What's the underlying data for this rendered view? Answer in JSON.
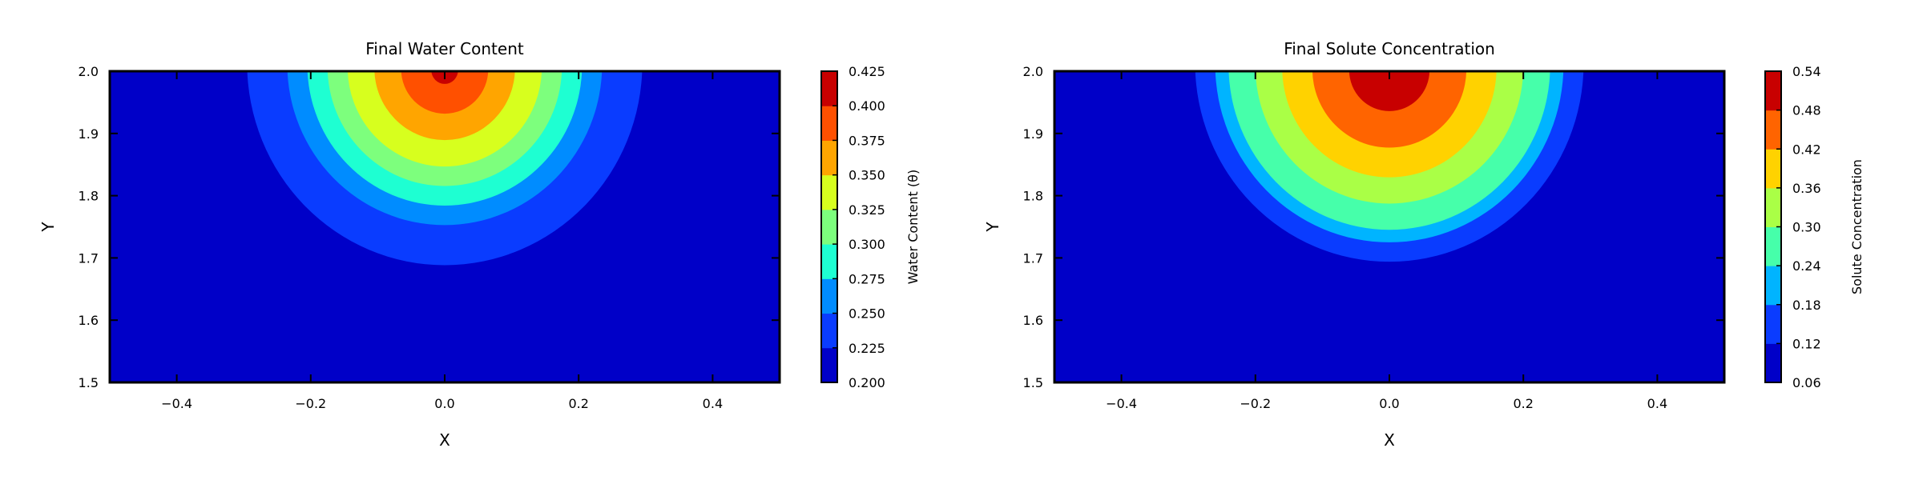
{
  "chart_data": [
    {
      "type": "contourf",
      "title": "Final Water Content",
      "xlabel": "X",
      "ylabel": "Y",
      "xlim": [
        -0.5,
        0.5
      ],
      "ylim": [
        1.5,
        2.0
      ],
      "xticks": [
        -0.4,
        -0.2,
        0.0,
        0.2,
        0.4
      ],
      "xtick_labels": [
        "−0.4",
        "−0.2",
        "0.0",
        "0.2",
        "0.4"
      ],
      "yticks": [
        1.5,
        1.6,
        1.7,
        1.8,
        1.9,
        2.0
      ],
      "ytick_labels": [
        "1.5",
        "1.6",
        "1.7",
        "1.8",
        "1.9",
        "2.0"
      ],
      "colorbar": {
        "label": "Water Content (θ)",
        "levels": [
          0.2,
          0.225,
          0.25,
          0.275,
          0.3,
          0.325,
          0.35,
          0.375,
          0.4,
          0.425
        ],
        "tick_labels": [
          "0.200",
          "0.225",
          "0.250",
          "0.275",
          "0.300",
          "0.325",
          "0.350",
          "0.375",
          "0.400",
          "0.425"
        ],
        "colors": [
          "#0000c8",
          "#0a3cff",
          "#008cff",
          "#1effd2",
          "#7dff7d",
          "#d7ff1e",
          "#ffa500",
          "#ff5000",
          "#c80000"
        ]
      },
      "field": {
        "center": [
          0.0,
          2.0
        ],
        "contour_crossings_along_x_at_top": [
          0.295,
          0.235,
          0.205,
          0.175,
          0.145,
          0.105,
          0.065,
          0.02
        ],
        "vertical_scale": 1.1
      }
    },
    {
      "type": "contourf",
      "title": "Final Solute Concentration",
      "xlabel": "X",
      "ylabel": "Y",
      "xlim": [
        -0.5,
        0.5
      ],
      "ylim": [
        1.5,
        2.0
      ],
      "xticks": [
        -0.4,
        -0.2,
        0.0,
        0.2,
        0.4
      ],
      "xtick_labels": [
        "−0.4",
        "−0.2",
        "0.0",
        "0.2",
        "0.4"
      ],
      "yticks": [
        1.5,
        1.6,
        1.7,
        1.8,
        1.9,
        2.0
      ],
      "ytick_labels": [
        "1.5",
        "1.6",
        "1.7",
        "1.8",
        "1.9",
        "2.0"
      ],
      "colorbar": {
        "label": "Solute Concentration",
        "levels": [
          0.06,
          0.12,
          0.18,
          0.24,
          0.3,
          0.36,
          0.42,
          0.48,
          0.54
        ],
        "tick_labels": [
          "0.06",
          "0.12",
          "0.18",
          "0.24",
          "0.30",
          "0.36",
          "0.42",
          "0.48",
          "0.54"
        ],
        "colors": [
          "#0000c8",
          "#0a3cff",
          "#00b4ff",
          "#46ffaa",
          "#aaff46",
          "#ffd200",
          "#ff6400",
          "#c80000"
        ]
      },
      "field": {
        "center": [
          0.0,
          2.0
        ],
        "contour_crossings_along_x_at_top": [
          0.29,
          0.26,
          0.24,
          0.2,
          0.16,
          0.115,
          0.06
        ],
        "vertical_scale": 1.1
      }
    }
  ]
}
